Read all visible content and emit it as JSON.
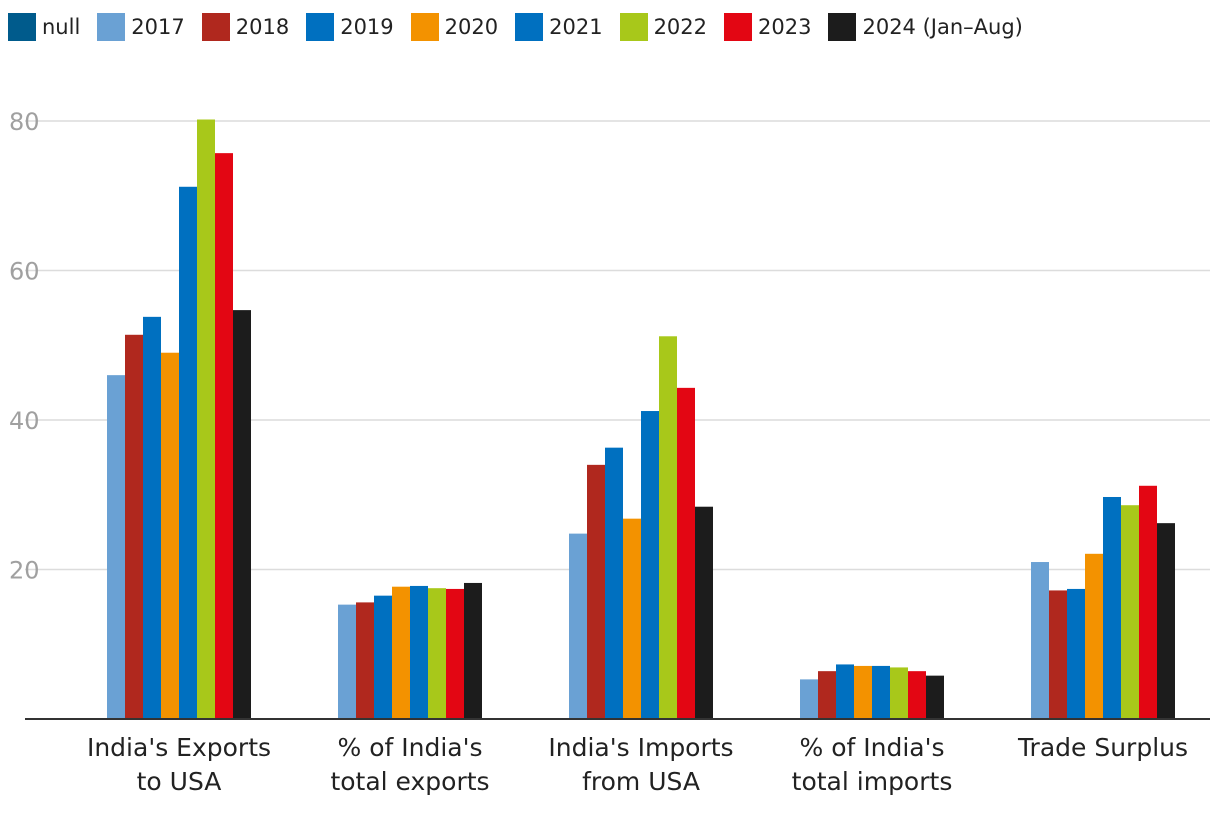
{
  "chart_data": {
    "type": "bar",
    "categories": [
      [
        "India's Exports",
        "to USA"
      ],
      [
        "% of India's",
        "total exports"
      ],
      [
        "India's Imports",
        "from USA"
      ],
      [
        "% of India's",
        "total imports"
      ],
      [
        "Trade Surplus"
      ]
    ],
    "series": [
      {
        "name": "null",
        "color": "#005b8c",
        "values": [
          null,
          null,
          null,
          null,
          null
        ]
      },
      {
        "name": "2017",
        "color": "#6aa1d4",
        "values": [
          46.0,
          15.3,
          24.8,
          5.3,
          21.0
        ]
      },
      {
        "name": "2018",
        "color": "#b0281e",
        "values": [
          51.4,
          15.6,
          34.0,
          6.4,
          17.2
        ]
      },
      {
        "name": "2019",
        "color": "#0070c0",
        "values": [
          53.8,
          16.5,
          36.3,
          7.3,
          17.4
        ]
      },
      {
        "name": "2020",
        "color": "#f39200",
        "values": [
          49.0,
          17.7,
          26.8,
          7.1,
          22.1
        ]
      },
      {
        "name": "2021",
        "color": "#0070c0",
        "values": [
          71.2,
          17.8,
          41.2,
          7.1,
          29.7
        ]
      },
      {
        "name": "2022",
        "color": "#a8c81a",
        "values": [
          80.2,
          17.5,
          51.2,
          6.9,
          28.6
        ]
      },
      {
        "name": "2023",
        "color": "#e30613",
        "values": [
          75.7,
          17.4,
          44.3,
          6.4,
          31.2
        ]
      },
      {
        "name": "2024 (Jan–Aug)",
        "color": "#1c1c1c",
        "values": [
          54.7,
          18.2,
          28.4,
          5.8,
          26.2
        ]
      }
    ],
    "yticks": [
      "20",
      "40",
      "60",
      "80"
    ],
    "ylim": [
      0,
      80
    ],
    "grid": true,
    "legend_position": "top-left"
  }
}
